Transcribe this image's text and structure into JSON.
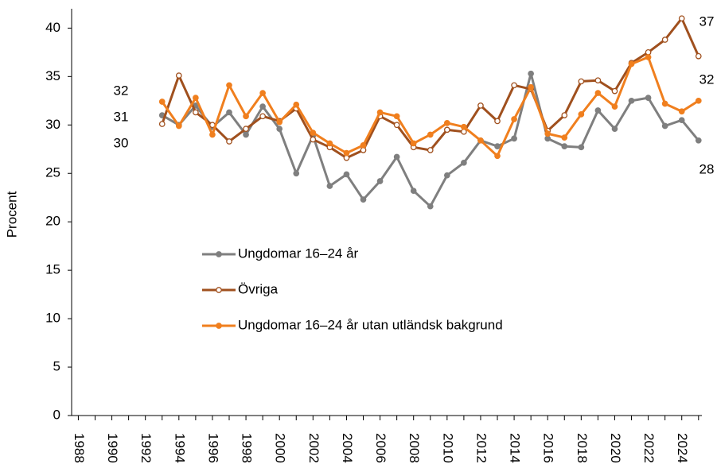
{
  "chart_data": {
    "type": "line",
    "y_label": "Procent",
    "x": [
      1993,
      1994,
      1995,
      1996,
      1997,
      1998,
      1999,
      2000,
      2001,
      2002,
      2003,
      2004,
      2005,
      2006,
      2007,
      2008,
      2009,
      2010,
      2011,
      2012,
      2013,
      2014,
      2015,
      2016,
      2017,
      2018,
      2019,
      2020,
      2021,
      2022,
      2023,
      2024,
      2025
    ],
    "series": [
      {
        "name": "Ungdomar 16–24 år",
        "color": "#7f7f7f",
        "marker": "filled",
        "values": [
          31,
          30,
          32,
          29.8,
          31.3,
          29,
          31.9,
          29.6,
          25,
          28.9,
          23.7,
          24.9,
          22.3,
          24.2,
          26.7,
          23.2,
          21.6,
          24.8,
          26.1,
          28.4,
          27.8,
          28.6,
          35.3,
          28.6,
          27.8,
          27.7,
          31.5,
          29.6,
          32.5,
          32.8,
          29.9,
          30.5,
          28.4
        ]
      },
      {
        "name": "Övriga",
        "color": "#a0501e",
        "marker": "hollow",
        "values": [
          30.1,
          35.1,
          31.3,
          30,
          28.3,
          29.6,
          30.9,
          30.4,
          31.7,
          28.5,
          27.7,
          26.6,
          27.4,
          30.9,
          30,
          27.7,
          27.4,
          29.5,
          29.3,
          32,
          30.4,
          34.1,
          33.7,
          29.4,
          31,
          34.5,
          34.6,
          33.5,
          36.4,
          37.5,
          38.8,
          41,
          37.1
        ]
      },
      {
        "name": "Ungdomar 16–24 år utan utländsk bakgrund",
        "color": "#f07f1e",
        "marker": "filled",
        "values": [
          32.4,
          29.9,
          32.8,
          29,
          34.1,
          30.9,
          33.3,
          30.3,
          32.1,
          29.2,
          28.1,
          27.1,
          27.9,
          31.3,
          30.9,
          28.1,
          29,
          30.2,
          29.8,
          28.4,
          26.8,
          30.6,
          33.9,
          29.1,
          28.7,
          31.1,
          33.3,
          31.9,
          36.3,
          37,
          32.2,
          31.4,
          32.5
        ]
      }
    ],
    "annotations": [
      {
        "text": "32"
      },
      {
        "text": "31"
      },
      {
        "text": "30"
      },
      {
        "text": "37"
      },
      {
        "text": "32"
      },
      {
        "text": "28"
      }
    ],
    "xlim": [
      1987.6,
      2025.2
    ],
    "xticks": [
      1988,
      1990,
      1992,
      1994,
      1996,
      1998,
      2000,
      2002,
      2004,
      2006,
      2008,
      2010,
      2012,
      2014,
      2016,
      2018,
      2020,
      2022,
      2024
    ],
    "xticks_minor": [
      1989,
      1991,
      1993,
      1995,
      1997,
      1999,
      2001,
      2003,
      2005,
      2007,
      2009,
      2011,
      2013,
      2015,
      2017,
      2019,
      2021,
      2023,
      2025
    ],
    "ylim": [
      0,
      42
    ],
    "yticks": [
      0,
      5,
      10,
      15,
      20,
      25,
      30,
      35,
      40
    ],
    "grid": false,
    "legend": "inside-left"
  }
}
